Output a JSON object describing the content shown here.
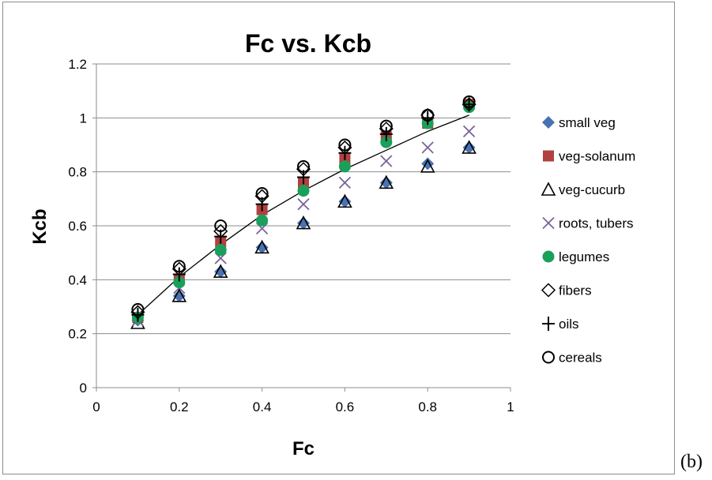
{
  "panel_label": "(b)",
  "chart_data": {
    "type": "scatter",
    "title": "Fc vs. Kcb",
    "xlabel": "Fc",
    "ylabel": "Kcb",
    "xlim": [
      0,
      1
    ],
    "ylim": [
      0,
      1.2
    ],
    "x_ticks": [
      "0",
      "0.2",
      "0.4",
      "0.6",
      "0.8",
      "1"
    ],
    "y_ticks": [
      "0",
      "0.2",
      "0.4",
      "0.6",
      "0.8",
      "1",
      "1.2"
    ],
    "x_tick_values": [
      0,
      0.2,
      0.4,
      0.6,
      0.8,
      1
    ],
    "y_tick_values": [
      0,
      0.2,
      0.4,
      0.6,
      0.8,
      1,
      1.2
    ],
    "grid": "horizontal",
    "legend_position": "right",
    "x": [
      0.1,
      0.2,
      0.3,
      0.4,
      0.5,
      0.6,
      0.7,
      0.8,
      0.9
    ],
    "series": [
      {
        "name": "small veg",
        "marker": "diamond",
        "color": "#4a72b0",
        "values": [
          0.25,
          0.34,
          0.43,
          0.52,
          0.61,
          0.69,
          0.76,
          0.83,
          0.89
        ]
      },
      {
        "name": "veg-solanum",
        "marker": "square",
        "color": "#b0413e",
        "values": [
          0.26,
          0.4,
          0.54,
          0.66,
          0.76,
          0.85,
          0.93,
          0.98,
          1.05
        ]
      },
      {
        "name": "veg-cucurb",
        "marker": "triangle",
        "color": "#000000",
        "values": [
          0.24,
          0.34,
          0.43,
          0.52,
          0.61,
          0.69,
          0.76,
          0.82,
          0.89
        ]
      },
      {
        "name": "roots, tubers",
        "marker": "x",
        "color": "#7a6498",
        "values": [
          0.25,
          0.37,
          0.48,
          0.59,
          0.68,
          0.76,
          0.84,
          0.89,
          0.95
        ]
      },
      {
        "name": "legumes",
        "marker": "circle-filled",
        "color": "#1aa05a",
        "values": [
          0.26,
          0.39,
          0.51,
          0.62,
          0.73,
          0.82,
          0.91,
          0.98,
          1.04
        ]
      },
      {
        "name": "fibers",
        "marker": "diamond-open",
        "color": "#000000",
        "values": [
          0.28,
          0.44,
          0.58,
          0.71,
          0.81,
          0.89,
          0.96,
          1.01,
          1.05
        ]
      },
      {
        "name": "oils",
        "marker": "plus",
        "color": "#000000",
        "values": [
          0.27,
          0.42,
          0.56,
          0.68,
          0.78,
          0.87,
          0.94,
          1.0,
          1.05
        ]
      },
      {
        "name": "cereals",
        "marker": "circle-open",
        "color": "#000000",
        "values": [
          0.29,
          0.45,
          0.6,
          0.72,
          0.82,
          0.9,
          0.97,
          1.01,
          1.06
        ]
      }
    ],
    "trendline": {
      "color": "#000000",
      "x": [
        0.1,
        0.2,
        0.3,
        0.4,
        0.5,
        0.6,
        0.7,
        0.8,
        0.9
      ],
      "y": [
        0.27,
        0.41,
        0.53,
        0.64,
        0.73,
        0.81,
        0.88,
        0.95,
        1.01
      ]
    }
  }
}
